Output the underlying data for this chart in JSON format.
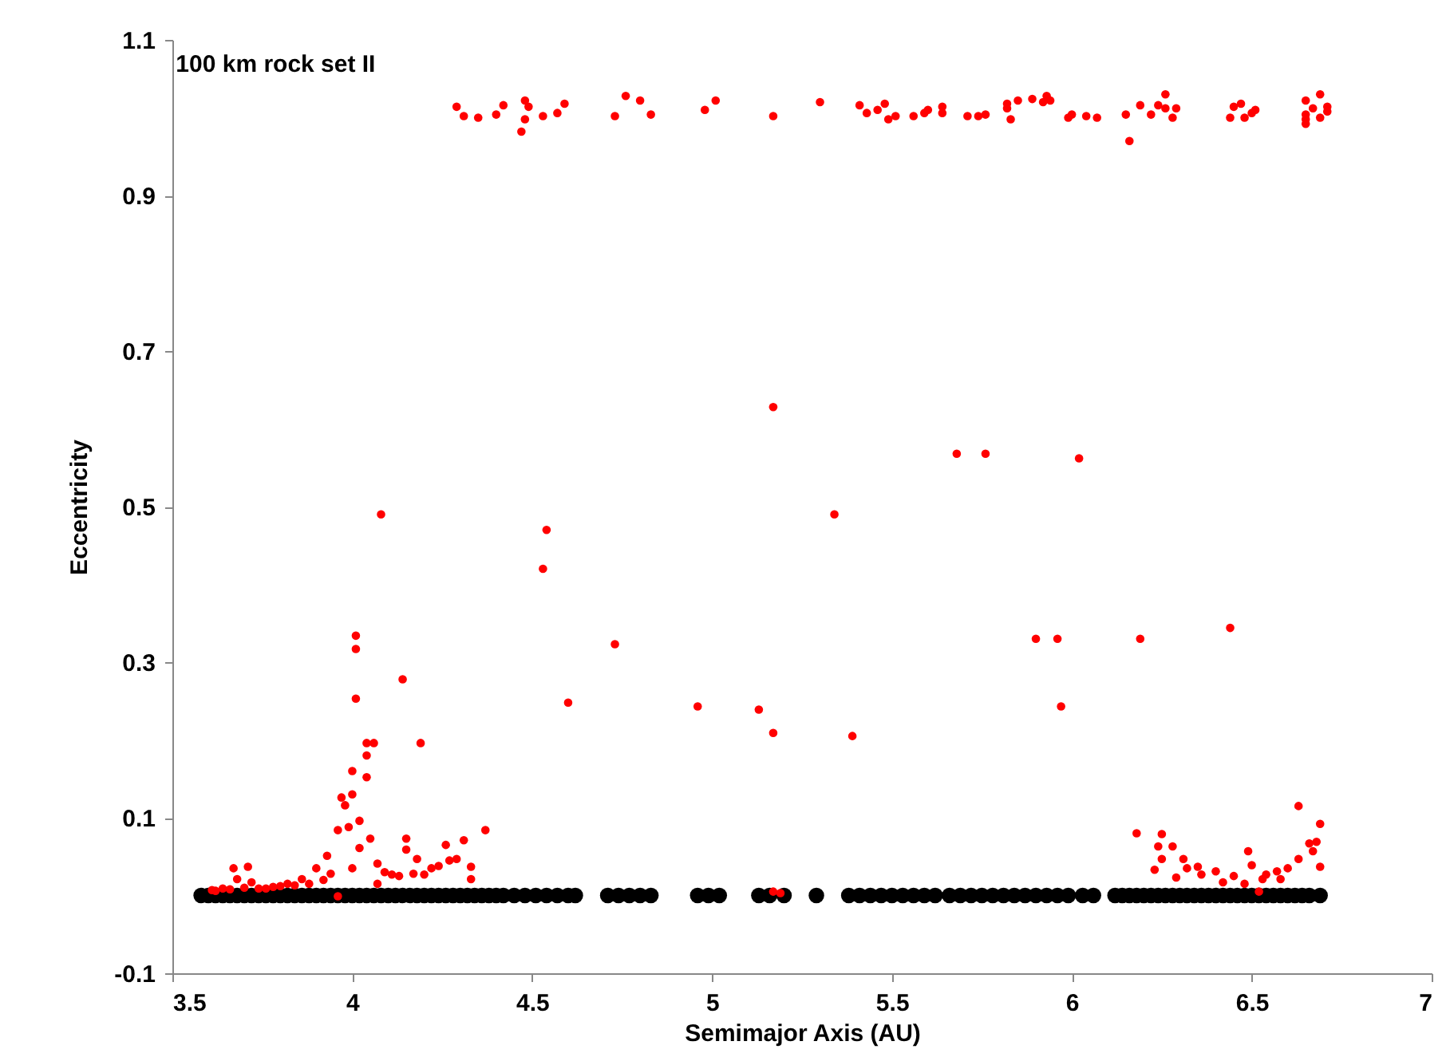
{
  "chart_data": {
    "type": "scatter",
    "title": "100 km rock set II",
    "xlabel": "Semimajor Axis (AU)",
    "ylabel": "Eccentricity",
    "xlim": [
      3.5,
      7
    ],
    "xticks": [
      3.5,
      4,
      4.5,
      5,
      5.5,
      6,
      6.5,
      7
    ],
    "ylim": [
      -0.1,
      1.1
    ],
    "yticks": [
      -0.1,
      0.1,
      0.3,
      0.5,
      0.7,
      0.9,
      1.1
    ],
    "marker": "circle",
    "grid": false,
    "series": [
      {
        "color": "#000000",
        "x": [
          3.58,
          3.6,
          3.62,
          3.64,
          3.66,
          3.68,
          3.7,
          3.72,
          3.74,
          3.76,
          3.78,
          3.8,
          3.82,
          3.84,
          3.86,
          3.88,
          3.9,
          3.92,
          3.94,
          3.96,
          3.98,
          4.0,
          4.02,
          4.04,
          4.06,
          4.08,
          4.1,
          4.12,
          4.14,
          4.16,
          4.18,
          4.2,
          4.22,
          4.24,
          4.26,
          4.28,
          4.3,
          4.32,
          4.34,
          4.36,
          4.38,
          4.4,
          4.42,
          4.45,
          4.48,
          4.51,
          4.54,
          4.57,
          4.6,
          4.62,
          4.71,
          4.74,
          4.77,
          4.8,
          4.83,
          4.96,
          4.99,
          5.02,
          5.13,
          5.16,
          5.2,
          5.29,
          5.38,
          5.41,
          5.44,
          5.47,
          5.5,
          5.53,
          5.56,
          5.59,
          5.62,
          5.66,
          5.69,
          5.72,
          5.75,
          5.78,
          5.81,
          5.84,
          5.87,
          5.9,
          5.93,
          5.96,
          5.99,
          6.03,
          6.06,
          6.12,
          6.14,
          6.16,
          6.18,
          6.2,
          6.22,
          6.24,
          6.26,
          6.28,
          6.3,
          6.32,
          6.34,
          6.36,
          6.38,
          6.4,
          6.42,
          6.44,
          6.46,
          6.48,
          6.5,
          6.52,
          6.54,
          6.56,
          6.58,
          6.6,
          6.62,
          6.64,
          6.66,
          6.69
        ],
        "values": [
          0,
          0,
          0,
          0,
          0,
          0,
          0,
          0,
          0,
          0,
          0,
          0,
          0,
          0,
          0,
          0,
          0,
          0,
          0,
          0,
          0,
          0,
          0,
          0,
          0,
          0,
          0,
          0,
          0,
          0,
          0,
          0,
          0,
          0,
          0,
          0,
          0,
          0,
          0,
          0,
          0,
          0,
          0,
          0,
          0,
          0,
          0,
          0,
          0,
          0,
          0,
          0,
          0,
          0,
          0,
          0,
          0,
          0,
          0,
          0,
          0,
          0,
          0,
          0,
          0,
          0,
          0,
          0,
          0,
          0,
          0,
          0,
          0,
          0,
          0,
          0,
          0,
          0,
          0,
          0,
          0,
          0,
          0,
          0,
          0,
          0,
          0,
          0,
          0,
          0,
          0,
          0,
          0,
          0,
          0,
          0,
          0,
          0,
          0,
          0,
          0,
          0,
          0,
          0,
          0,
          0,
          0,
          0,
          0,
          0,
          0,
          0,
          0,
          0
        ]
      },
      {
        "color": "#ff0000",
        "x": [
          4.29,
          4.31,
          4.35,
          4.4,
          4.42,
          4.48,
          4.49,
          4.47,
          4.48,
          4.53,
          4.57,
          4.59,
          4.73,
          4.76,
          4.8,
          4.83,
          4.98,
          5.01,
          5.17,
          5.3,
          5.41,
          5.43,
          5.46,
          5.48,
          5.49,
          5.51,
          5.56,
          5.59,
          5.6,
          5.64,
          5.64,
          5.71,
          5.74,
          5.76,
          5.82,
          5.82,
          5.83,
          5.85,
          5.89,
          5.92,
          5.93,
          5.94,
          5.99,
          6.0,
          6.04,
          6.07,
          6.15,
          6.16,
          6.19,
          6.22,
          6.24,
          6.26,
          6.26,
          6.28,
          6.29,
          6.44,
          6.45,
          6.47,
          6.48,
          6.5,
          6.51,
          6.65,
          6.69,
          6.65,
          6.67,
          6.65,
          6.71,
          6.69,
          6.65,
          6.71,
          4.08,
          4.01,
          4.01,
          4.01,
          4.14,
          4.06,
          4.19,
          4.53,
          4.54,
          4.6,
          4.73,
          4.96,
          5.13,
          5.17,
          5.17,
          5.34,
          5.39,
          5.68,
          5.76,
          5.9,
          5.96,
          5.97,
          6.02,
          6.19,
          6.44,
          6.63,
          6.69,
          6.18,
          4.04,
          4.04,
          4.0,
          4.04,
          3.97,
          4.0,
          3.98,
          4.02,
          3.96,
          3.99,
          4.37,
          4.15,
          4.26,
          4.31,
          4.05,
          4.15,
          3.93,
          4.18,
          4.33,
          4.33,
          3.67,
          3.71,
          3.68,
          3.72,
          3.96,
          3.61,
          3.86,
          3.9,
          4.07,
          4.11,
          4.2,
          4.22,
          4.29,
          4.07,
          3.82,
          3.76,
          3.64,
          4.0,
          4.02,
          3.62,
          3.66,
          3.7,
          3.74,
          3.78,
          3.8,
          3.84,
          3.88,
          3.92,
          3.94,
          4.09,
          4.13,
          4.17,
          4.24,
          4.27,
          6.25,
          6.24,
          6.28,
          6.25,
          6.23,
          6.29,
          6.31,
          6.35,
          6.4,
          6.45,
          6.49,
          6.5,
          6.52,
          6.53,
          6.57,
          6.6,
          6.63,
          6.66,
          6.68,
          6.69,
          6.67,
          6.42,
          6.48,
          6.36,
          6.32,
          6.54,
          6.58,
          5.17,
          5.19
        ],
        "values": [
          1.014,
          1.002,
          1.0,
          1.004,
          1.016,
          1.022,
          1.014,
          0.982,
          0.998,
          1.002,
          1.006,
          1.018,
          1.002,
          1.028,
          1.022,
          1.004,
          1.01,
          1.022,
          1.002,
          1.02,
          1.016,
          1.006,
          1.01,
          1.018,
          0.998,
          1.002,
          1.002,
          1.006,
          1.01,
          1.006,
          1.014,
          1.002,
          1.002,
          1.004,
          1.018,
          1.012,
          0.998,
          1.022,
          1.024,
          1.02,
          1.028,
          1.022,
          1.0,
          1.004,
          1.002,
          1.0,
          1.004,
          0.97,
          1.016,
          1.004,
          1.016,
          1.03,
          1.012,
          1.0,
          1.012,
          1.0,
          1.014,
          1.018,
          1.0,
          1.006,
          1.01,
          1.022,
          1.03,
          1.004,
          1.012,
          0.992,
          1.008,
          1.0,
          0.998,
          1.014,
          0.49,
          0.334,
          0.317,
          0.253,
          0.278,
          0.196,
          0.196,
          0.42,
          0.47,
          0.248,
          0.323,
          0.243,
          0.239,
          0.209,
          0.628,
          0.49,
          0.205,
          0.568,
          0.568,
          0.33,
          0.33,
          0.243,
          0.562,
          0.33,
          0.344,
          0.115,
          0.092,
          0.08,
          0.196,
          0.18,
          0.16,
          0.152,
          0.126,
          0.13,
          0.116,
          0.096,
          0.084,
          0.088,
          0.084,
          0.073,
          0.065,
          0.071,
          0.073,
          0.059,
          0.051,
          0.047,
          0.037,
          0.021,
          0.035,
          0.037,
          0.021,
          0.017,
          -0.001,
          0.007,
          0.021,
          0.035,
          0.041,
          0.027,
          0.027,
          0.035,
          0.047,
          0.015,
          0.015,
          0.009,
          0.009,
          0.035,
          0.061,
          0.006,
          0.008,
          0.01,
          0.009,
          0.011,
          0.012,
          0.013,
          0.015,
          0.02,
          0.028,
          0.03,
          0.025,
          0.028,
          0.038,
          0.045,
          0.079,
          0.063,
          0.063,
          0.047,
          0.033,
          0.023,
          0.047,
          0.037,
          0.031,
          0.025,
          0.057,
          0.039,
          0.005,
          0.021,
          0.031,
          0.035,
          0.047,
          0.067,
          0.069,
          0.037,
          0.057,
          0.017,
          0.015,
          0.027,
          0.035,
          0.027,
          0.021,
          0.005,
          0.003
        ]
      }
    ]
  }
}
